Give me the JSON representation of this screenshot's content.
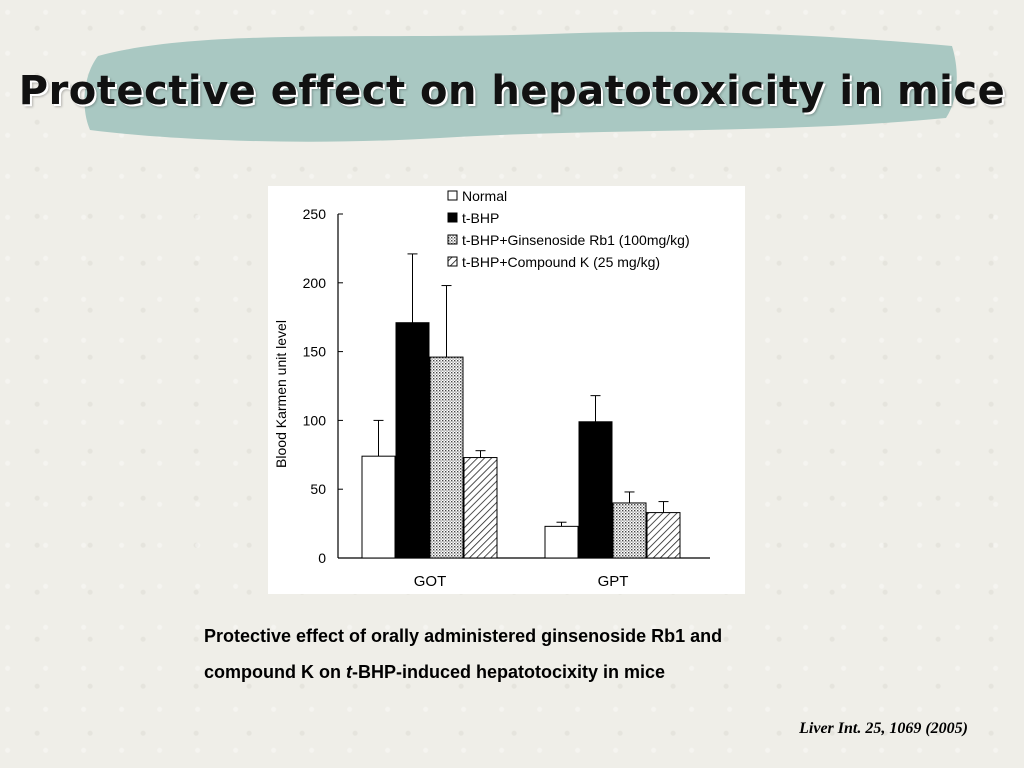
{
  "slide": {
    "title": "Protective effect on hepatotoxicity in mice",
    "caption_line1": "Protective effect of orally administered ginsenoside Rb1 and",
    "caption_line2_pre": "compound K on ",
    "caption_line2_italic": "t",
    "caption_line2_post": "-BHP-induced hepatotocixity in mice",
    "citation": "Liver Int. 25, 1069 (2005)",
    "band_color": "#a9c8c2"
  },
  "chart_data": {
    "type": "bar",
    "title": "",
    "xlabel": "",
    "ylabel": "Blood Karmen unit level",
    "ylim": [
      0,
      250
    ],
    "yticks": [
      "0",
      "50",
      "100",
      "150",
      "200",
      "250"
    ],
    "categories": [
      "GOT",
      "GPT"
    ],
    "legend_position": "top-right",
    "series": [
      {
        "name": "Normal",
        "values": [
          74,
          23
        ],
        "errors": [
          26,
          3
        ],
        "fill": "white"
      },
      {
        "name": "t-BHP",
        "values": [
          171,
          99
        ],
        "errors": [
          50,
          19
        ],
        "fill": "black"
      },
      {
        "name": "t-BHP+Ginsenoside Rb1 (100mg/kg)",
        "values": [
          146,
          40
        ],
        "errors": [
          52,
          8
        ],
        "fill": "dotted"
      },
      {
        "name": "t-BHP+Compound K (25 mg/kg)",
        "values": [
          73,
          33
        ],
        "errors": [
          5,
          8
        ],
        "fill": "hatched"
      }
    ]
  }
}
